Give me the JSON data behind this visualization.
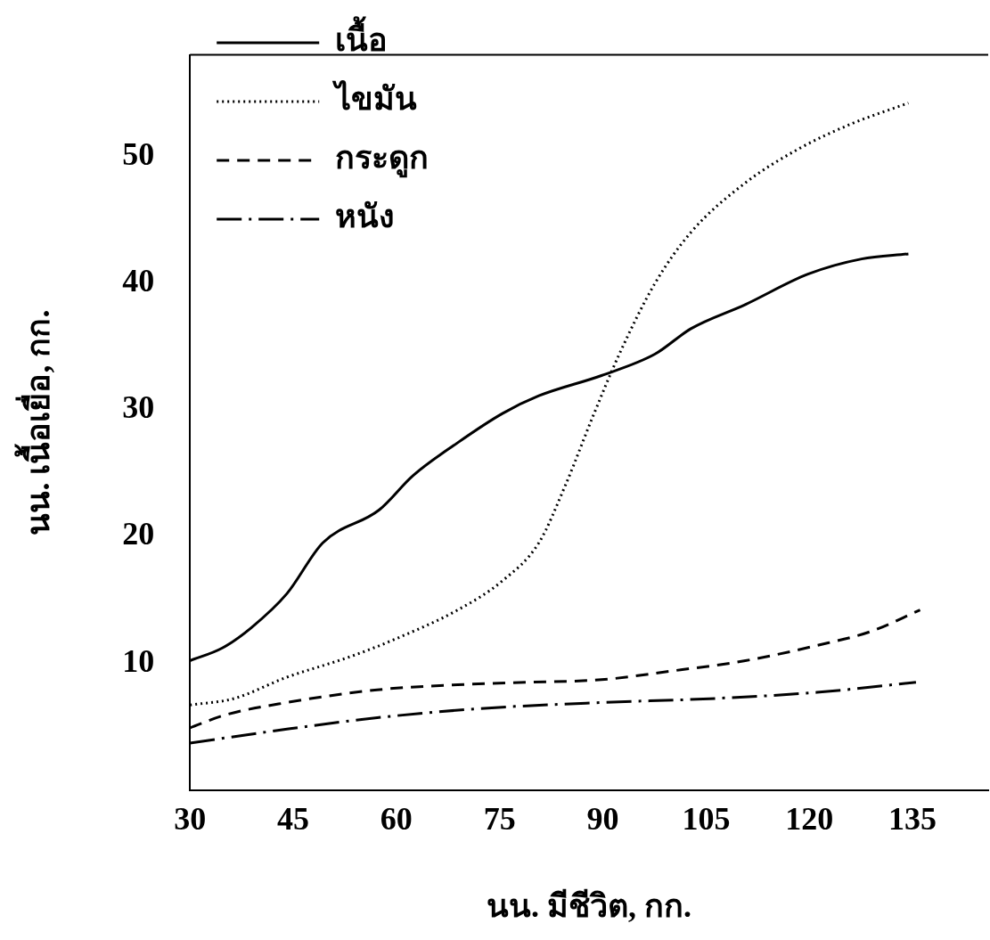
{
  "chart_data": {
    "type": "line",
    "xlabel": "นน. มีชีวิต, กก.",
    "ylabel": "นน. เนื้อเยื่อ, กก.",
    "xlim": [
      30,
      146
    ],
    "xticks": [
      30,
      45,
      60,
      75,
      90,
      105,
      120,
      135
    ],
    "ylim": [
      0,
      58
    ],
    "yticks": [
      10,
      20,
      30,
      40,
      50
    ],
    "grid": false,
    "legend": "top left",
    "marker": "none",
    "series": [
      {
        "name": "เนื้อ",
        "color": "#000000",
        "line_style": "solid",
        "x": [
          30,
          34.7,
          38.9,
          44.1,
          49.3,
          57.5,
          62.4,
          68.9,
          75.4,
          80.7,
          89.8,
          97.6,
          102.8,
          110.7,
          119.8,
          127.6,
          134.4
        ],
        "values": [
          10.2,
          11.2,
          12.8,
          15.5,
          19.5,
          22.1,
          24.8,
          27.4,
          29.7,
          31.1,
          32.7,
          34.4,
          36.4,
          38.3,
          40.7,
          41.9,
          42.3
        ]
      },
      {
        "name": "ไขมัน",
        "color": "#000000",
        "line_style": "dotted",
        "x": [
          30,
          36.3,
          44.1,
          53.2,
          59.8,
          68.9,
          75.4,
          80.7,
          84.6,
          88.5,
          92.4,
          97.6,
          102.8,
          110.7,
          118.5,
          126.3,
          134.4
        ],
        "values": [
          6.7,
          7.2,
          8.9,
          10.5,
          11.9,
          14.2,
          16.5,
          19.5,
          24.1,
          29.4,
          34.4,
          40.0,
          44.0,
          47.9,
          50.6,
          52.6,
          54.2
        ]
      },
      {
        "name": "กระดูก",
        "color": "#000000",
        "line_style": "dashed",
        "x": [
          30,
          35,
          44.1,
          57.2,
          68.9,
          79.3,
          89.8,
          100.2,
          110.7,
          121.1,
          128.9,
          136.1
        ],
        "values": [
          4.9,
          5.9,
          6.9,
          7.9,
          8.3,
          8.5,
          8.7,
          9.4,
          10.2,
          11.4,
          12.5,
          14.2
        ]
      },
      {
        "name": "หนัง",
        "color": "#000000",
        "line_style": "dashdot",
        "x": [
          30,
          44.1,
          57.2,
          71.5,
          89.8,
          105.5,
          121.1,
          135.5
        ],
        "values": [
          3.7,
          4.8,
          5.7,
          6.4,
          6.9,
          7.2,
          7.7,
          8.5
        ]
      }
    ]
  }
}
